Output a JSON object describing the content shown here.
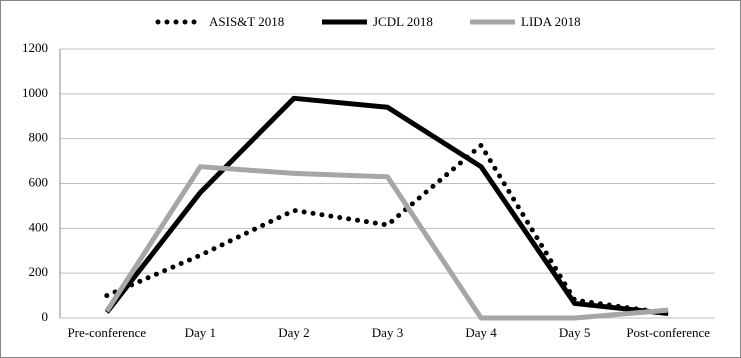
{
  "chart_data": {
    "type": "line",
    "categories": [
      "Pre-conference",
      "Day 1",
      "Day 2",
      "Day 3",
      "Day 4",
      "Day 5",
      "Post-conference"
    ],
    "series": [
      {
        "name": "ASIS&T 2018",
        "color": "#000000",
        "style": "dotted",
        "values": [
          100,
          280,
          480,
          415,
          770,
          80,
          20
        ]
      },
      {
        "name": "JCDL 2018",
        "color": "#000000",
        "style": "solid",
        "values": [
          25,
          560,
          980,
          940,
          675,
          65,
          20
        ]
      },
      {
        "name": "LIDA 2018",
        "color": "#a6a6a6",
        "style": "solid",
        "values": [
          30,
          675,
          645,
          630,
          0,
          0,
          35
        ]
      }
    ],
    "ylim": [
      0,
      1200
    ],
    "yticks": [
      0,
      200,
      400,
      600,
      800,
      1000,
      1200
    ],
    "grid": true,
    "legend": "top"
  }
}
